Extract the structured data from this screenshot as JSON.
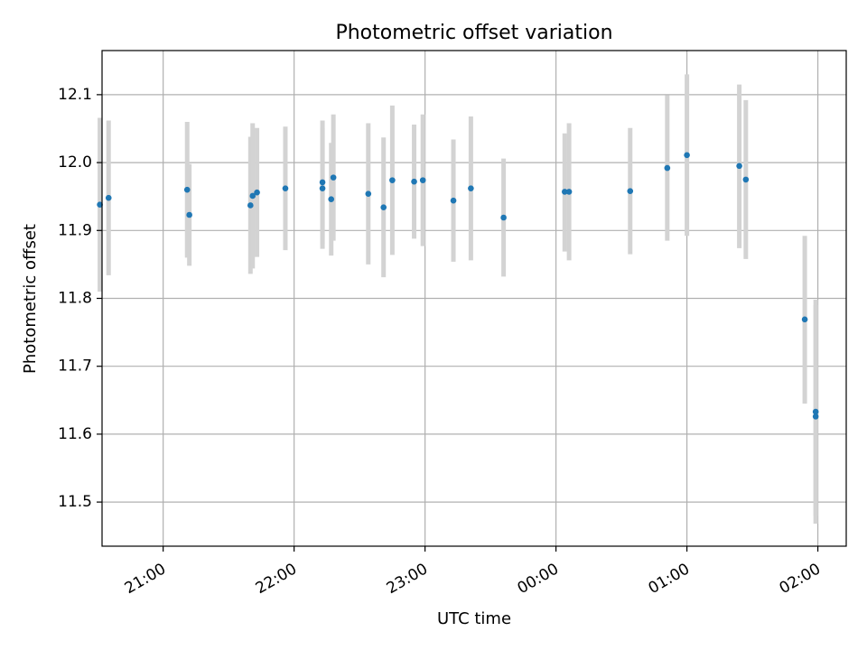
{
  "chart_data": {
    "type": "scatter",
    "title": "Photometric offset variation",
    "xlabel": "UTC time",
    "ylabel": "Photometric offset",
    "x_axis": {
      "kind": "time",
      "range": [
        "20:32",
        "02:13"
      ],
      "tick_labels": [
        "21:00",
        "22:00",
        "23:00",
        "00:00",
        "01:00",
        "02:00"
      ],
      "tick_times": [
        "21:00",
        "22:00",
        "23:00",
        "00:00",
        "01:00",
        "02:00"
      ]
    },
    "y_axis": {
      "range": [
        11.435,
        12.165
      ],
      "ticks": [
        11.5,
        11.6,
        11.7,
        11.8,
        11.9,
        12.0,
        12.1
      ],
      "tick_labels": [
        "11.5",
        "11.6",
        "11.7",
        "11.8",
        "11.9",
        "12.0",
        "12.1"
      ]
    },
    "grid": true,
    "colors": {
      "marker": "#1f77b4",
      "errorbar": "#d3d3d3",
      "grid": "#b0b0b0"
    },
    "points": [
      {
        "time": "20:31",
        "y": 11.938,
        "ylow": 11.81,
        "yhigh": 12.066
      },
      {
        "time": "20:35",
        "y": 11.948,
        "ylow": 11.834,
        "yhigh": 12.062
      },
      {
        "time": "21:11",
        "y": 11.96,
        "ylow": 11.86,
        "yhigh": 12.06
      },
      {
        "time": "21:12",
        "y": 11.923,
        "ylow": 11.848,
        "yhigh": 11.998
      },
      {
        "time": "21:40",
        "y": 11.937,
        "ylow": 11.836,
        "yhigh": 12.038
      },
      {
        "time": "21:41",
        "y": 11.951,
        "ylow": 11.844,
        "yhigh": 12.058
      },
      {
        "time": "21:43",
        "y": 11.956,
        "ylow": 11.861,
        "yhigh": 12.051
      },
      {
        "time": "21:56",
        "y": 11.962,
        "ylow": 11.871,
        "yhigh": 12.053
      },
      {
        "time": "22:13",
        "y": 11.962,
        "ylow": 11.873,
        "yhigh": 12.051
      },
      {
        "time": "22:13",
        "y": 11.971,
        "ylow": 11.88,
        "yhigh": 12.062
      },
      {
        "time": "22:17",
        "y": 11.946,
        "ylow": 11.863,
        "yhigh": 12.029
      },
      {
        "time": "22:18",
        "y": 11.978,
        "ylow": 11.885,
        "yhigh": 12.071
      },
      {
        "time": "22:34",
        "y": 11.954,
        "ylow": 11.85,
        "yhigh": 12.058
      },
      {
        "time": "22:41",
        "y": 11.934,
        "ylow": 11.831,
        "yhigh": 12.037
      },
      {
        "time": "22:45",
        "y": 11.974,
        "ylow": 11.864,
        "yhigh": 12.084
      },
      {
        "time": "22:55",
        "y": 11.972,
        "ylow": 11.888,
        "yhigh": 12.056
      },
      {
        "time": "22:59",
        "y": 11.974,
        "ylow": 11.877,
        "yhigh": 12.071
      },
      {
        "time": "23:13",
        "y": 11.944,
        "ylow": 11.854,
        "yhigh": 12.034
      },
      {
        "time": "23:21",
        "y": 11.962,
        "ylow": 11.856,
        "yhigh": 12.068
      },
      {
        "time": "23:36",
        "y": 11.919,
        "ylow": 11.832,
        "yhigh": 12.006
      },
      {
        "time": "00:04",
        "y": 11.957,
        "ylow": 11.869,
        "yhigh": 12.043
      },
      {
        "time": "00:06",
        "y": 11.957,
        "ylow": 11.856,
        "yhigh": 12.058
      },
      {
        "time": "00:34",
        "y": 11.958,
        "ylow": 11.865,
        "yhigh": 12.051
      },
      {
        "time": "00:51",
        "y": 11.992,
        "ylow": 11.885,
        "yhigh": 12.099
      },
      {
        "time": "01:00",
        "y": 12.011,
        "ylow": 11.892,
        "yhigh": 12.13
      },
      {
        "time": "01:24",
        "y": 11.995,
        "ylow": 11.874,
        "yhigh": 12.115
      },
      {
        "time": "01:27",
        "y": 11.975,
        "ylow": 11.858,
        "yhigh": 12.092
      },
      {
        "time": "01:54",
        "y": 11.769,
        "ylow": 11.645,
        "yhigh": 11.892
      },
      {
        "time": "01:59",
        "y": 11.633,
        "ylow": 11.468,
        "yhigh": 11.798
      },
      {
        "time": "01:59",
        "y": 11.626,
        "ylow": 11.48,
        "yhigh": 11.79
      }
    ]
  }
}
